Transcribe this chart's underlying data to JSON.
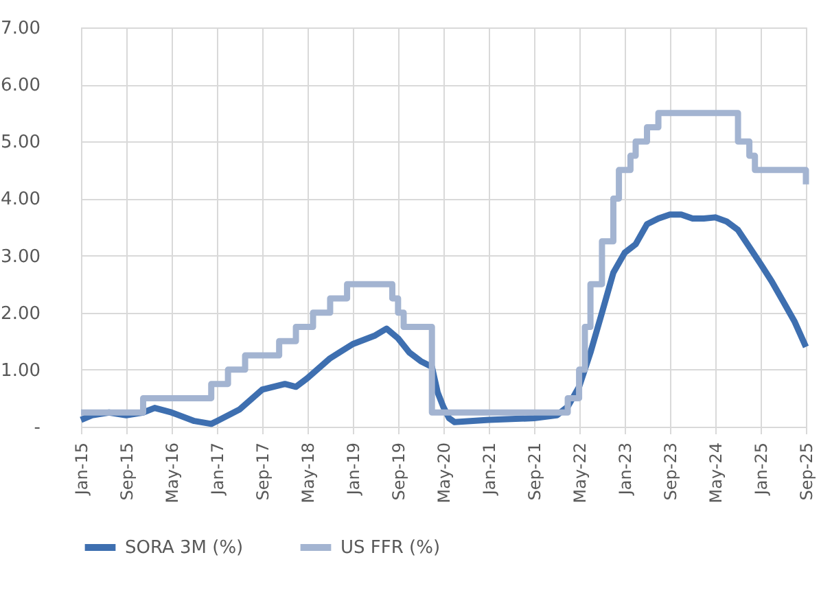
{
  "chart_data": {
    "type": "line",
    "xlim": [
      "2015-01",
      "2025-09"
    ],
    "xticks": [
      {
        "value": "2015-01",
        "label": "Jan-15"
      },
      {
        "value": "2015-09",
        "label": "Sep-15"
      },
      {
        "value": "2016-05",
        "label": "May-16"
      },
      {
        "value": "2017-01",
        "label": "Jan-17"
      },
      {
        "value": "2017-09",
        "label": "Sep-17"
      },
      {
        "value": "2018-05",
        "label": "May-18"
      },
      {
        "value": "2019-01",
        "label": "Jan-19"
      },
      {
        "value": "2019-09",
        "label": "Sep-19"
      },
      {
        "value": "2020-05",
        "label": "May-20"
      },
      {
        "value": "2021-01",
        "label": "Jan-21"
      },
      {
        "value": "2021-09",
        "label": "Sep-21"
      },
      {
        "value": "2022-05",
        "label": "May-22"
      },
      {
        "value": "2023-01",
        "label": "Jan-23"
      },
      {
        "value": "2023-09",
        "label": "Sep-23"
      },
      {
        "value": "2024-05",
        "label": "May-24"
      },
      {
        "value": "2025-01",
        "label": "Jan-25"
      },
      {
        "value": "2025-09",
        "label": "Sep-25"
      }
    ],
    "ylim": [
      0,
      7
    ],
    "yticks": [
      {
        "value": 0,
        "label": "-"
      },
      {
        "value": 1,
        "label": "1.00"
      },
      {
        "value": 2,
        "label": "2.00"
      },
      {
        "value": 3,
        "label": "3.00"
      },
      {
        "value": 4,
        "label": "4.00"
      },
      {
        "value": 5,
        "label": "5.00"
      },
      {
        "value": 6,
        "label": "6.00"
      },
      {
        "value": 7,
        "label": "7.00"
      }
    ],
    "grid": true,
    "legend": "bottom",
    "series": [
      {
        "name": "SORA 3M (%)",
        "color": "#3e6fb0",
        "type": "line",
        "x": [
          "2015-01",
          "2015-03",
          "2015-06",
          "2015-09",
          "2015-12",
          "2016-02",
          "2016-05",
          "2016-09",
          "2016-12",
          "2017-01",
          "2017-05",
          "2017-09",
          "2018-01",
          "2018-03",
          "2018-05",
          "2018-09",
          "2019-01",
          "2019-05",
          "2019-07",
          "2019-09",
          "2019-11",
          "2020-01",
          "2020-03",
          "2020-04",
          "2020-05",
          "2020-06",
          "2020-07",
          "2021-01",
          "2021-09",
          "2022-01",
          "2022-03",
          "2022-05",
          "2022-07",
          "2022-09",
          "2022-11",
          "2023-01",
          "2023-03",
          "2023-05",
          "2023-07",
          "2023-09",
          "2023-11",
          "2024-01",
          "2024-03",
          "2024-05",
          "2024-07",
          "2024-09",
          "2024-11",
          "2025-01",
          "2025-03",
          "2025-05",
          "2025-07",
          "2025-09"
        ],
        "values": [
          0.12,
          0.2,
          0.25,
          0.2,
          0.25,
          0.33,
          0.25,
          0.1,
          0.05,
          0.1,
          0.3,
          0.65,
          0.75,
          0.7,
          0.85,
          1.2,
          1.45,
          1.6,
          1.72,
          1.55,
          1.3,
          1.15,
          1.05,
          0.6,
          0.35,
          0.15,
          0.08,
          0.12,
          0.15,
          0.2,
          0.35,
          0.7,
          1.3,
          2.0,
          2.7,
          3.05,
          3.2,
          3.55,
          3.65,
          3.72,
          3.72,
          3.65,
          3.65,
          3.67,
          3.6,
          3.45,
          3.15,
          2.85,
          2.55,
          2.2,
          1.85,
          1.4
        ]
      },
      {
        "name": "US FFR (%)",
        "color": "#a3b4d1",
        "type": "step",
        "x": [
          "2015-01",
          "2015-12",
          "2016-12",
          "2017-03",
          "2017-06",
          "2017-12",
          "2018-03",
          "2018-06",
          "2018-09",
          "2018-12",
          "2019-08",
          "2019-09",
          "2019-10",
          "2020-03",
          "2022-03",
          "2022-05",
          "2022-06",
          "2022-07",
          "2022-09",
          "2022-11",
          "2022-12",
          "2023-02",
          "2023-03",
          "2023-05",
          "2023-07",
          "2024-09",
          "2024-11",
          "2024-12",
          "2025-09"
        ],
        "values": [
          0.25,
          0.5,
          0.75,
          1.0,
          1.25,
          1.5,
          1.75,
          2.0,
          2.25,
          2.5,
          2.25,
          2.0,
          1.75,
          0.25,
          0.5,
          1.0,
          1.75,
          2.5,
          3.25,
          4.0,
          4.5,
          4.75,
          5.0,
          5.25,
          5.5,
          5.0,
          4.75,
          4.5,
          4.25
        ]
      }
    ]
  }
}
